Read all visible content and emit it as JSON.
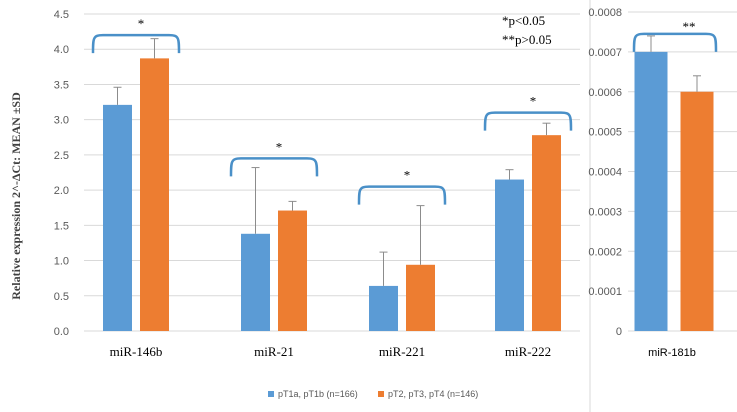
{
  "chart_data": [
    {
      "type": "bar",
      "ylabel": "Relative expression 2^-ΔCt: MEAN ±SD",
      "ylim": [
        0,
        4.5
      ],
      "yticks": [
        "0.0",
        "0.5",
        "1.0",
        "1.5",
        "2.0",
        "2.5",
        "3.0",
        "3.5",
        "4.0",
        "4.5"
      ],
      "categories": [
        "miR-146b",
        "miR-21",
        "miR-221",
        "miR-222"
      ],
      "series": [
        {
          "name": "pT1a, pT1b (n=166)",
          "color": "#5B9BD5",
          "values": [
            3.21,
            1.38,
            0.64,
            2.15
          ],
          "errors": [
            0.25,
            0.94,
            0.48,
            0.14
          ]
        },
        {
          "name": "pT2, pT3, pT4 (n=146)",
          "color": "#ED7D31",
          "values": [
            3.87,
            1.71,
            0.94,
            2.78
          ],
          "errors": [
            0.28,
            0.13,
            0.84,
            0.17
          ]
        }
      ],
      "significance": [
        "*",
        "*",
        "*",
        "*"
      ],
      "bracket_heights": [
        4.2,
        2.45,
        2.05,
        3.1
      ],
      "annotations": [
        "*p<0.05",
        "**p>0.05"
      ]
    },
    {
      "type": "bar",
      "ylim": [
        0,
        0.0008
      ],
      "yticks": [
        "0",
        "0.0001",
        "0.0002",
        "0.0003",
        "0.0004",
        "0.0005",
        "0.0006",
        "0.0007",
        "0.0008"
      ],
      "categories": [
        "miR-181b"
      ],
      "series": [
        {
          "name": "pT1a, pT1b (n=166)",
          "color": "#5B9BD5",
          "values": [
            0.0007
          ],
          "errors": [
            4e-05
          ]
        },
        {
          "name": "pT2, pT3, pT4 (n=146)",
          "color": "#ED7D31",
          "values": [
            0.0006
          ],
          "errors": [
            4e-05
          ]
        }
      ],
      "significance": [
        "**"
      ],
      "bracket_heights": [
        0.000745
      ]
    }
  ],
  "legend": [
    {
      "label": "pT1a, pT1b (n=166)",
      "color": "#5B9BD5"
    },
    {
      "label": "pT2, pT3, pT4 (n=146)",
      "color": "#ED7D31"
    }
  ],
  "bracket_color": "#4A90C8"
}
